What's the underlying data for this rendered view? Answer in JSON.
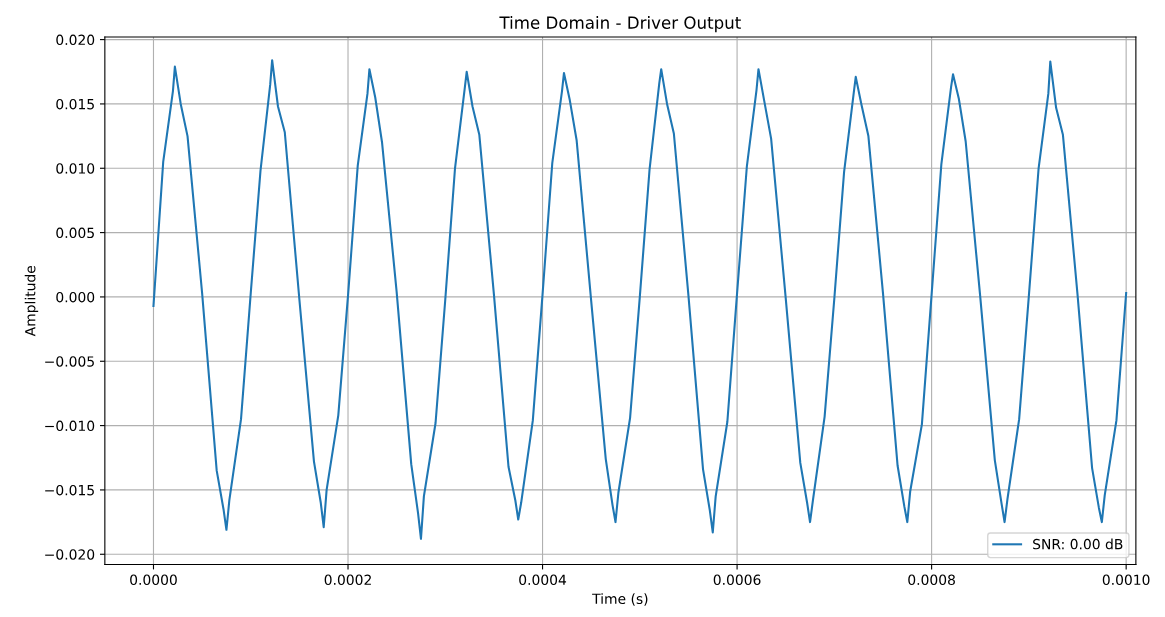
{
  "chart_data": {
    "type": "line",
    "title": "Time Domain - Driver Output",
    "xlabel": "Time (s)",
    "ylabel": "Amplitude",
    "xlim": [
      -5e-05,
      0.00101
    ],
    "ylim": [
      -0.0208,
      0.0202
    ],
    "xticks": [
      {
        "value": 0,
        "label": "0.0000"
      },
      {
        "value": 0.0002,
        "label": "0.0002"
      },
      {
        "value": 0.0004,
        "label": "0.0004"
      },
      {
        "value": 0.0006,
        "label": "0.0006"
      },
      {
        "value": 0.0008,
        "label": "0.0008"
      },
      {
        "value": 0.001,
        "label": "0.0010"
      }
    ],
    "yticks": [
      {
        "value": -0.02,
        "label": "−0.020"
      },
      {
        "value": -0.015,
        "label": "−0.015"
      },
      {
        "value": -0.01,
        "label": "−0.010"
      },
      {
        "value": -0.005,
        "label": "−0.005"
      },
      {
        "value": 0,
        "label": "0.000"
      },
      {
        "value": 0.005,
        "label": "0.005"
      },
      {
        "value": 0.01,
        "label": "0.010"
      },
      {
        "value": 0.015,
        "label": "0.015"
      },
      {
        "value": 0.02,
        "label": "0.020"
      }
    ],
    "grid": true,
    "legend": "bottom right",
    "series": [
      {
        "name": "SNR: 0.00 dB",
        "color": "#1f77b4",
        "x": [
          0,
          1e-05,
          2e-05,
          2.2e-05,
          2.8e-05,
          3.5e-05,
          5e-05,
          6.5e-05,
          7.2e-05,
          7.5e-05,
          7.8e-05,
          9e-05,
          0.0001,
          0.00011,
          0.00012,
          0.000122,
          0.000128,
          0.000135,
          0.00015,
          0.000165,
          0.000172,
          0.000175,
          0.000178,
          0.00019,
          0.0002,
          0.00021,
          0.00022,
          0.000222,
          0.000228,
          0.000235,
          0.00025,
          0.000265,
          0.000272,
          0.000275,
          0.000278,
          0.00029,
          0.0003,
          0.00031,
          0.00032,
          0.000322,
          0.000328,
          0.000335,
          0.00035,
          0.000365,
          0.000372,
          0.000375,
          0.000378,
          0.00039,
          0.0004,
          0.00041,
          0.00042,
          0.000422,
          0.000428,
          0.000435,
          0.00045,
          0.000465,
          0.000472,
          0.000475,
          0.000478,
          0.00049,
          0.0005,
          0.00051,
          0.00052,
          0.000522,
          0.000528,
          0.000535,
          0.00055,
          0.000565,
          0.000572,
          0.000575,
          0.000578,
          0.00059,
          0.0006,
          0.00061,
          0.00062,
          0.000622,
          0.000628,
          0.000635,
          0.00065,
          0.000665,
          0.000672,
          0.000675,
          0.000678,
          0.00069,
          0.0007,
          0.00071,
          0.00072,
          0.000722,
          0.000728,
          0.000735,
          0.00075,
          0.000765,
          0.000772,
          0.000775,
          0.000778,
          0.00079,
          0.0008,
          0.00081,
          0.00082,
          0.000822,
          0.000828,
          0.000835,
          0.00085,
          0.000865,
          0.000872,
          0.000875,
          0.000878,
          0.00089,
          0.0009,
          0.00091,
          0.00092,
          0.000922,
          0.000928,
          0.000935,
          0.00095,
          0.000965,
          0.000972,
          0.000975,
          0.000978,
          0.00099,
          0.001
        ],
        "values": [
          -0.0007,
          0.0105,
          0.016,
          0.0179,
          0.015,
          0.0125,
          0.0003,
          -0.0135,
          -0.0165,
          -0.0181,
          -0.0158,
          -0.0095,
          0.0003,
          0.0098,
          0.0165,
          0.0184,
          0.0148,
          0.0128,
          -0.0002,
          -0.0128,
          -0.016,
          -0.0179,
          -0.015,
          -0.0092,
          0.0001,
          0.0102,
          0.0158,
          0.0177,
          0.0155,
          0.012,
          0.0004,
          -0.013,
          -0.0168,
          -0.0188,
          -0.0155,
          -0.0098,
          -0.0002,
          0.01,
          0.0162,
          0.0175,
          0.0148,
          0.0126,
          0.0002,
          -0.0132,
          -0.0158,
          -0.0173,
          -0.016,
          -0.0096,
          0.0002,
          0.0104,
          0.016,
          0.0174,
          0.0153,
          0.0122,
          -0.0003,
          -0.0126,
          -0.0162,
          -0.0175,
          -0.0152,
          -0.0094,
          0.0,
          0.0099,
          0.0166,
          0.0177,
          0.015,
          0.0127,
          0.0001,
          -0.0134,
          -0.0166,
          -0.0183,
          -0.0155,
          -0.0097,
          0.0003,
          0.0101,
          0.0161,
          0.0177,
          0.0152,
          0.0123,
          -0.0001,
          -0.0129,
          -0.016,
          -0.0175,
          -0.0158,
          -0.0093,
          -0.0001,
          0.0097,
          0.0159,
          0.0171,
          0.0149,
          0.0125,
          0.0003,
          -0.0131,
          -0.0163,
          -0.0175,
          -0.0151,
          -0.0099,
          0.0002,
          0.0103,
          0.0163,
          0.0173,
          0.0154,
          0.0121,
          0.0,
          -0.0127,
          -0.0161,
          -0.0175,
          -0.0157,
          -0.0095,
          0.0001,
          0.01,
          0.0158,
          0.0183,
          0.0147,
          0.0126,
          0.0002,
          -0.0133,
          -0.0164,
          -0.0175,
          -0.0154,
          -0.0096,
          0.0003
        ]
      }
    ]
  }
}
